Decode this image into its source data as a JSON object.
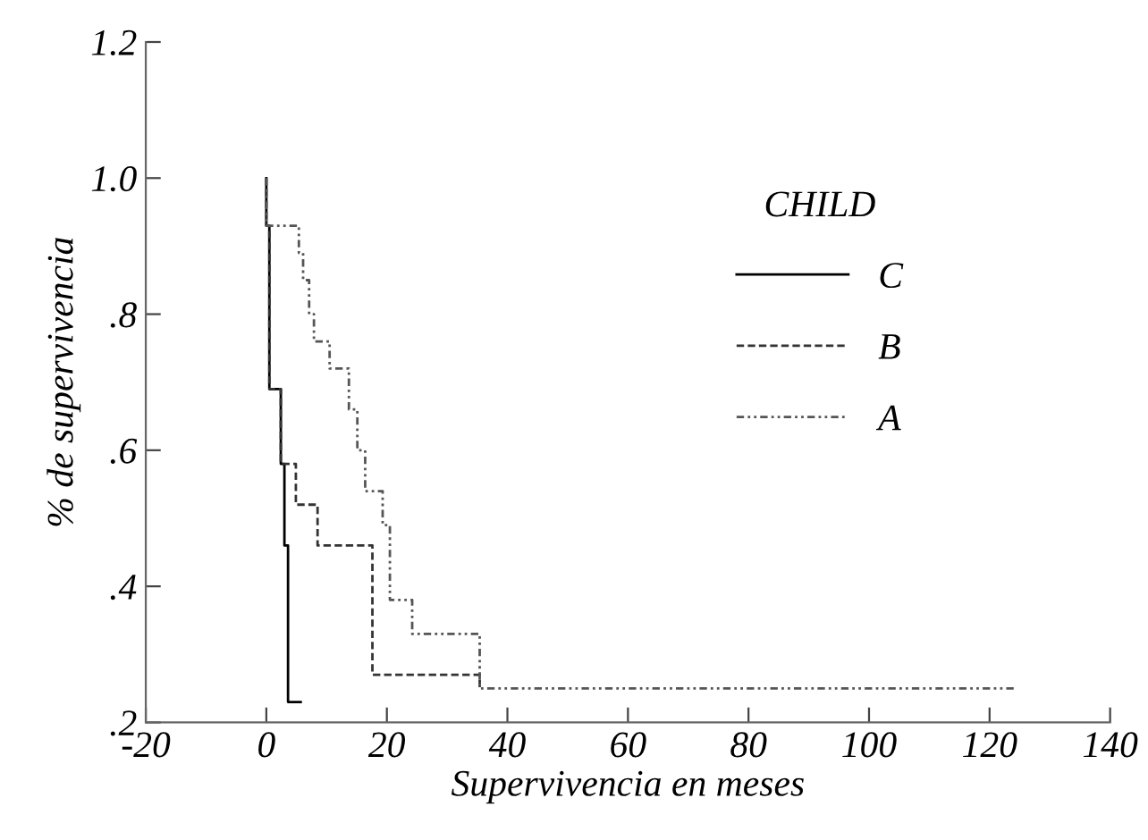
{
  "chart_data": {
    "type": "step",
    "xlabel": "Supervivencia en meses",
    "ylabel": "% de supervivencia",
    "legend_title": "CHILD",
    "xlim": [
      -20,
      140
    ],
    "xticks": [
      -20,
      0,
      20,
      40,
      60,
      80,
      100,
      120,
      140
    ],
    "ylim": [
      0.2,
      1.2
    ],
    "yticks": [
      {
        "value": 0.2,
        "label": ".2"
      },
      {
        "value": 0.4,
        "label": ".4"
      },
      {
        "value": 0.6,
        "label": ".6"
      },
      {
        "value": 0.8,
        "label": ".8"
      },
      {
        "value": 1.0,
        "label": "1.0"
      },
      {
        "value": 1.2,
        "label": "1.2"
      }
    ],
    "grid": false,
    "legend": "right",
    "marker": "none",
    "series": [
      {
        "name": "C",
        "color": "#000000",
        "line_style": "solid",
        "x": [
          0,
          0,
          0.5,
          2.4,
          3.0,
          3.6,
          5.7
        ],
        "values": [
          1.0,
          0.93,
          0.69,
          0.58,
          0.46,
          0.23,
          0.23
        ]
      },
      {
        "name": "B",
        "color": "#333333",
        "line_style": "dashed",
        "x": [
          0,
          0,
          0.5,
          2.4,
          4.9,
          8.5,
          17.6,
          35.4
        ],
        "values": [
          1.0,
          0.93,
          0.69,
          0.58,
          0.52,
          0.46,
          0.27,
          0.25
        ]
      },
      {
        "name": "A",
        "color": "#555555",
        "line_style": "dotted",
        "x": [
          0,
          0,
          5.4,
          6.1,
          7.1,
          7.9,
          10.5,
          13.7,
          15.1,
          16.4,
          19.3,
          20.5,
          24.2,
          35.4,
          124
        ],
        "values": [
          1.0,
          0.93,
          0.89,
          0.85,
          0.8,
          0.76,
          0.72,
          0.66,
          0.6,
          0.54,
          0.49,
          0.38,
          0.33,
          0.25,
          0.25
        ]
      }
    ]
  }
}
